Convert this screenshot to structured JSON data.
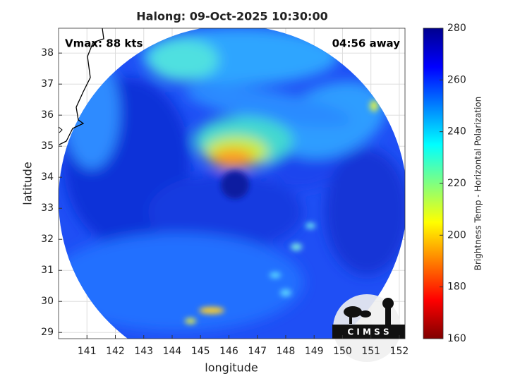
{
  "chart_data": {
    "type": "image-map",
    "title": "Halong: 09-Oct-2025 10:30:00",
    "annotations": [
      "Vmax: 88 kts",
      "04:56 away"
    ],
    "xlabel": "longitude",
    "ylabel": "latitude",
    "xlim": [
      140,
      152.2
    ],
    "xticks": [
      141,
      142,
      143,
      144,
      145,
      146,
      147,
      148,
      149,
      150,
      151,
      152
    ],
    "ylim": [
      28.8,
      38.8
    ],
    "yticks": [
      29,
      30,
      31,
      32,
      33,
      34,
      35,
      36,
      37,
      38
    ],
    "grid": true,
    "colorbar": {
      "label": "Brightness Temp - Horizontal Polarization",
      "lim": [
        160,
        280
      ],
      "ticks": [
        160,
        180,
        200,
        220,
        240,
        260,
        280
      ],
      "colormap": "jet-reversed"
    }
  },
  "logo": "C I M S S"
}
